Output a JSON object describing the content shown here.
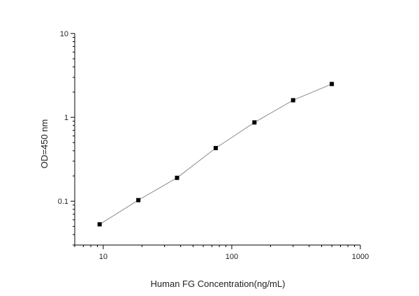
{
  "chart_data": {
    "type": "line",
    "xlabel": "Human FG Concentration(ng/mL)",
    "ylabel": "OD=450 nm",
    "x_scale": "log",
    "y_scale": "log",
    "xlim": [
      6,
      1000
    ],
    "ylim": [
      0.03,
      10
    ],
    "x_tick_labels": [
      {
        "value": 10,
        "label": "10"
      },
      {
        "value": 100,
        "label": "100"
      },
      {
        "value": 1000,
        "label": "1000"
      }
    ],
    "y_tick_labels": [
      {
        "value": 0.1,
        "label": "0.1"
      },
      {
        "value": 1,
        "label": "1"
      },
      {
        "value": 10,
        "label": "10"
      }
    ],
    "grid": false,
    "series": [
      {
        "marker": "square",
        "line_color": "#8c8c8c",
        "marker_color": "#000000",
        "points": [
          {
            "x": 9.375,
            "y": 0.053
          },
          {
            "x": 18.75,
            "y": 0.103
          },
          {
            "x": 37.5,
            "y": 0.19
          },
          {
            "x": 75,
            "y": 0.43
          },
          {
            "x": 150,
            "y": 0.87
          },
          {
            "x": 300,
            "y": 1.6
          },
          {
            "x": 600,
            "y": 2.5
          }
        ]
      }
    ]
  }
}
